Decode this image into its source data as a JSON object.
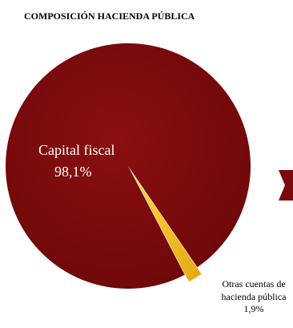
{
  "chart_data": {
    "type": "pie",
    "title": "COMPOSICIÓN HACIENDA PÚBLICA",
    "slices": [
      {
        "label": "Capital fiscal",
        "value": 98.1,
        "value_label": "98,1%",
        "color": "#7b0a0c"
      },
      {
        "label_lines": [
          "Otras cuentas de",
          "hacienda pública"
        ],
        "value": 1.9,
        "value_label": "1,9%",
        "color": "#f3c21f"
      }
    ],
    "legend": "none"
  },
  "decoration": {
    "arrow_color": "#7b0a0c"
  }
}
